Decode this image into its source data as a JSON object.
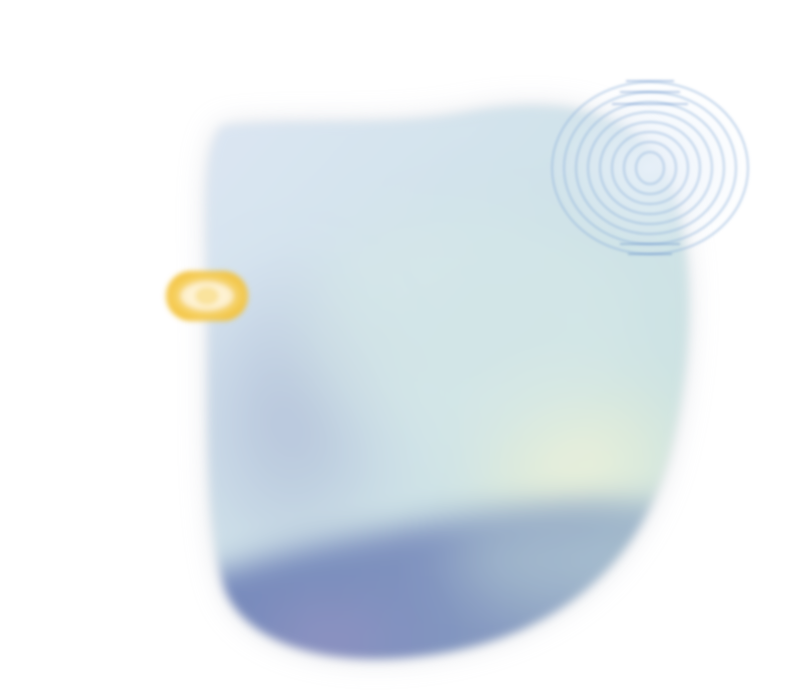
{
  "colors": {
    "background": "#ffffff",
    "blob_top_left": "#dde6f4",
    "blob_mid": "#cfe3e8",
    "blob_glow": "#eef2d8",
    "blob_bottom": "#6c7fb2",
    "blob_bottom_violet": "#9a8fbf",
    "ripple_stroke": "#8fb2da",
    "pill_fill": "#f6cf5a"
  },
  "elements": {
    "main_shape": "blurred-blob",
    "corner_ornament": "concentric-ripple",
    "side_ornament": "yellow-pill"
  }
}
